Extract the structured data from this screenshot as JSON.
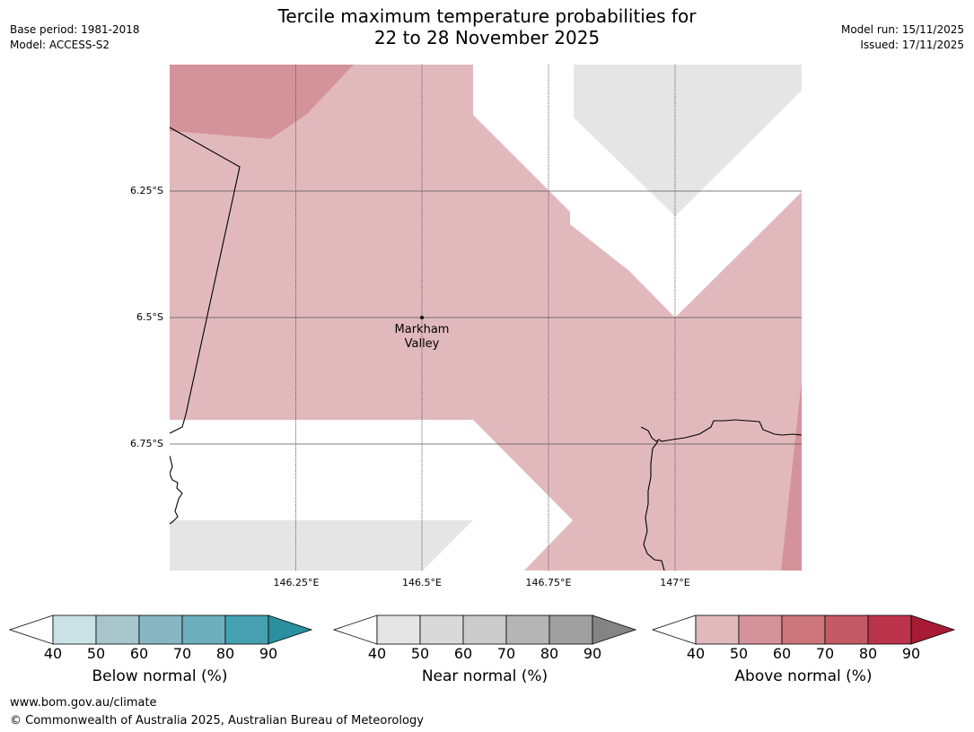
{
  "title": {
    "line1": "Tercile maximum temperature probabilities for",
    "line2": "22 to 28 November 2025"
  },
  "meta_left": {
    "base_period": "Base period: 1981-2018",
    "model": "Model: ACCESS-S2"
  },
  "meta_right": {
    "model_run": "Model run: 15/11/2025",
    "issued": "Issued: 17/11/2025"
  },
  "map": {
    "latitude_labels": [
      "6.25°S",
      "6.5°S",
      "6.75°S"
    ],
    "longitude_labels": [
      "146.25°E",
      "146.5°E",
      "146.75°E",
      "147°E"
    ],
    "place": {
      "line1": "Markham",
      "line2": "Valley"
    },
    "colors": {
      "above_40_50": "#e1b9bd",
      "above_50_60": "#d4939a",
      "near_40_50": "#e5e5e5"
    }
  },
  "colorbars": [
    {
      "id": "below",
      "label": "Below normal (%)",
      "ticks": [
        "40",
        "50",
        "60",
        "70",
        "80",
        "90"
      ],
      "colors": [
        "#cae1e6",
        "#a7c6cb",
        "#89b6c3",
        "#6dafbc",
        "#45a1af",
        "#2a8f9e"
      ]
    },
    {
      "id": "near",
      "label": "Near normal (%)",
      "ticks": [
        "40",
        "50",
        "60",
        "70",
        "80",
        "90"
      ],
      "colors": [
        "#e5e5e5",
        "#d9d9d9",
        "#cbcbcb",
        "#b5b5b5",
        "#a0a0a0",
        "#848484"
      ]
    },
    {
      "id": "above",
      "label": "Above normal (%)",
      "ticks": [
        "40",
        "50",
        "60",
        "70",
        "80",
        "90"
      ],
      "colors": [
        "#e1b9bd",
        "#d4939a",
        "#cc767c",
        "#c45a66",
        "#bc344c",
        "#a81b35"
      ]
    }
  ],
  "footer": {
    "url": "www.bom.gov.au/climate",
    "copyright": "© Commonwealth of Australia 2025, Australian Bureau of Meteorology"
  }
}
